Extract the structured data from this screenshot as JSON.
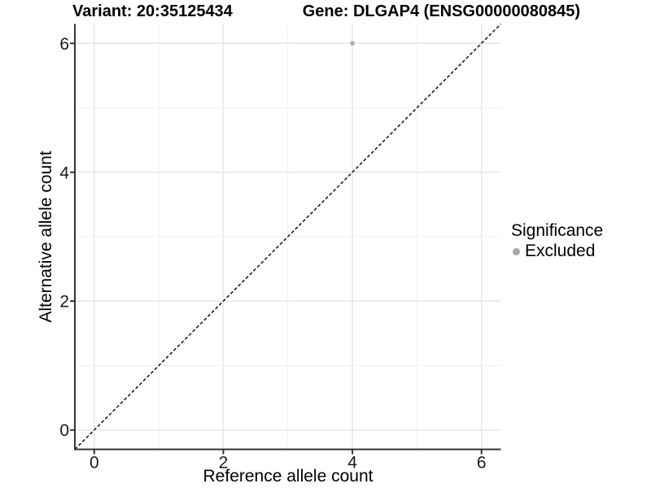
{
  "titles": {
    "left": "Variant: 20:35125434",
    "right": "Gene: DLGAP4 (ENSG00000080845)"
  },
  "legend": {
    "title": "Significance",
    "items": [
      {
        "label": "Excluded",
        "color": "#a9a9a9"
      }
    ]
  },
  "chart_data": {
    "type": "scatter",
    "title": "Variant: 20:35125434 / Gene: DLGAP4 (ENSG00000080845)",
    "xlabel": "Reference allele count",
    "ylabel": "Alternative allele count",
    "xlim": [
      -0.3,
      6.3
    ],
    "ylim": [
      -0.3,
      6.3
    ],
    "xticks": [
      0,
      2,
      4,
      6
    ],
    "yticks": [
      0,
      2,
      4,
      6
    ],
    "xminor": [
      1,
      3,
      5
    ],
    "yminor": [
      1,
      3,
      5
    ],
    "grid": true,
    "legend_position": "right",
    "series": [
      {
        "name": "Excluded",
        "color": "#b3b3b3",
        "points": [
          {
            "x": 4,
            "y": 6
          }
        ]
      }
    ],
    "reference_line": {
      "kind": "identity",
      "from": {
        "x": -0.3,
        "y": -0.3
      },
      "to": {
        "x": 6.3,
        "y": 6.3
      },
      "style": "dashed",
      "color": "#000000"
    }
  },
  "colors": {
    "background": "#ffffff",
    "axis_line": "#333333",
    "tick_mark": "#333333",
    "tick_label": "#1a1a1a",
    "grid_major": "#e6e6e6",
    "grid_minor": "#f0f0f0"
  }
}
